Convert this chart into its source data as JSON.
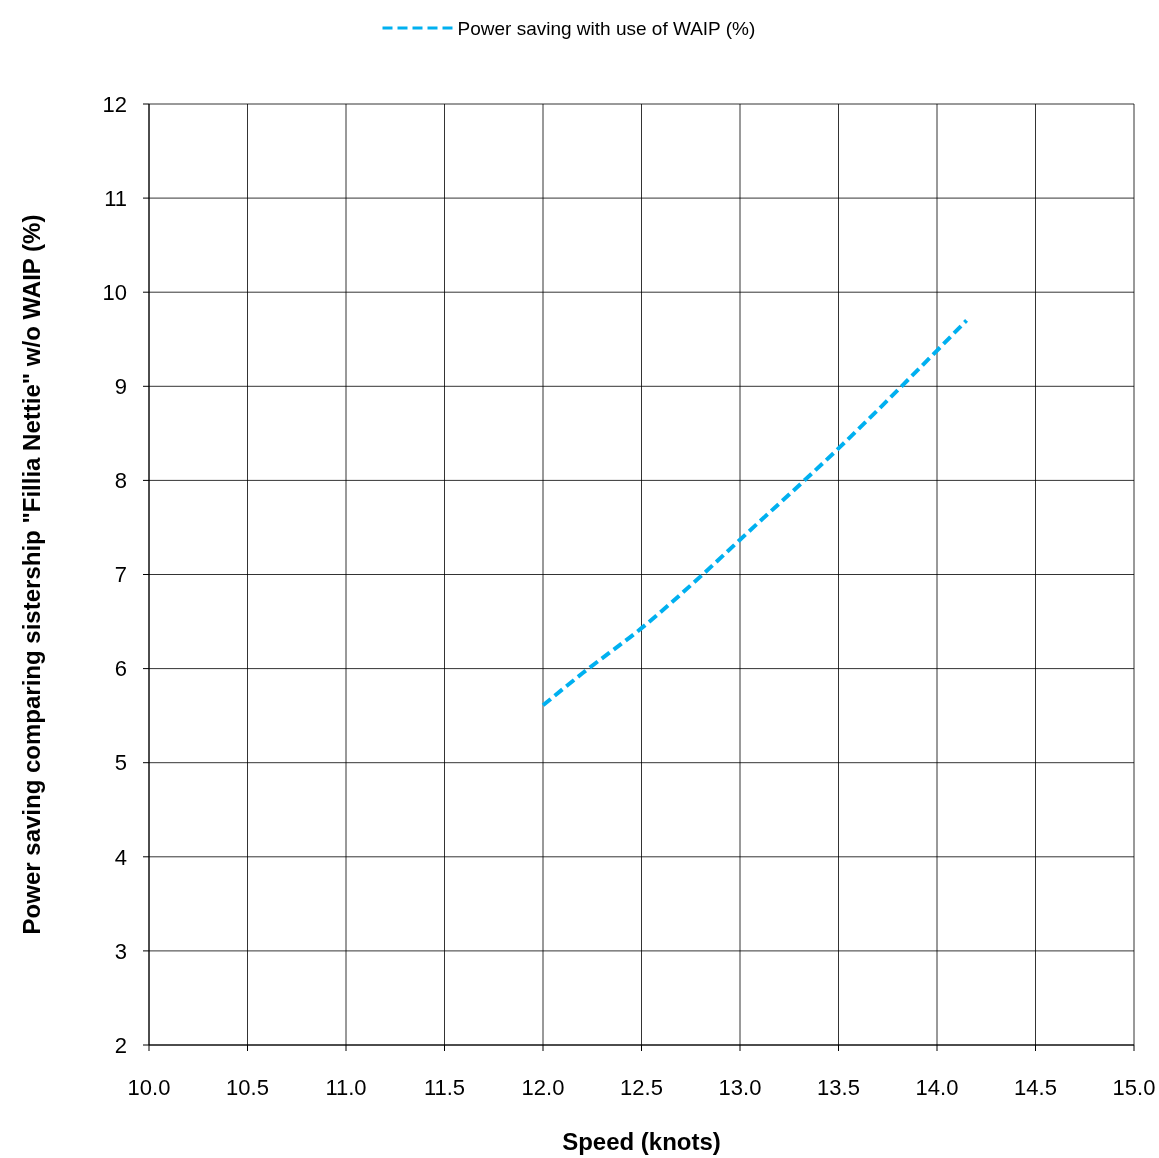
{
  "chart_data": {
    "type": "line",
    "xlabel": "Speed (knots)",
    "ylabel": "Power saving comparing sistership \"Fillia Nettie\" w/o WAIP (%)",
    "x": [
      12.0,
      12.2,
      12.5,
      12.8,
      13.0,
      13.5,
      14.0,
      14.15
    ],
    "series": [
      {
        "name": "Power saving with use of WAIP (%)",
        "color": "#00b0f0",
        "values": [
          5.61,
          5.95,
          6.43,
          6.98,
          7.37,
          8.34,
          9.38,
          9.7
        ]
      }
    ],
    "xlim": [
      10,
      15
    ],
    "xticks": [
      {
        "value": 10,
        "label": "10.0"
      },
      {
        "value": 10.5,
        "label": "10.5"
      },
      {
        "value": 11,
        "label": "11.0"
      },
      {
        "value": 11.5,
        "label": "11.5"
      },
      {
        "value": 12,
        "label": "12.0"
      },
      {
        "value": 12.5,
        "label": "12.5"
      },
      {
        "value": 13,
        "label": "13.0"
      },
      {
        "value": 13.5,
        "label": "13.5"
      },
      {
        "value": 14,
        "label": "14.0"
      },
      {
        "value": 14.5,
        "label": "14.5"
      },
      {
        "value": 15,
        "label": "15.0"
      }
    ],
    "ylim": [
      2,
      12
    ],
    "yticks": [
      2,
      3,
      4,
      5,
      6,
      7,
      8,
      9,
      10,
      11,
      12
    ],
    "grid": true,
    "legend": "top",
    "line_style": "dashed",
    "marker": "none"
  }
}
